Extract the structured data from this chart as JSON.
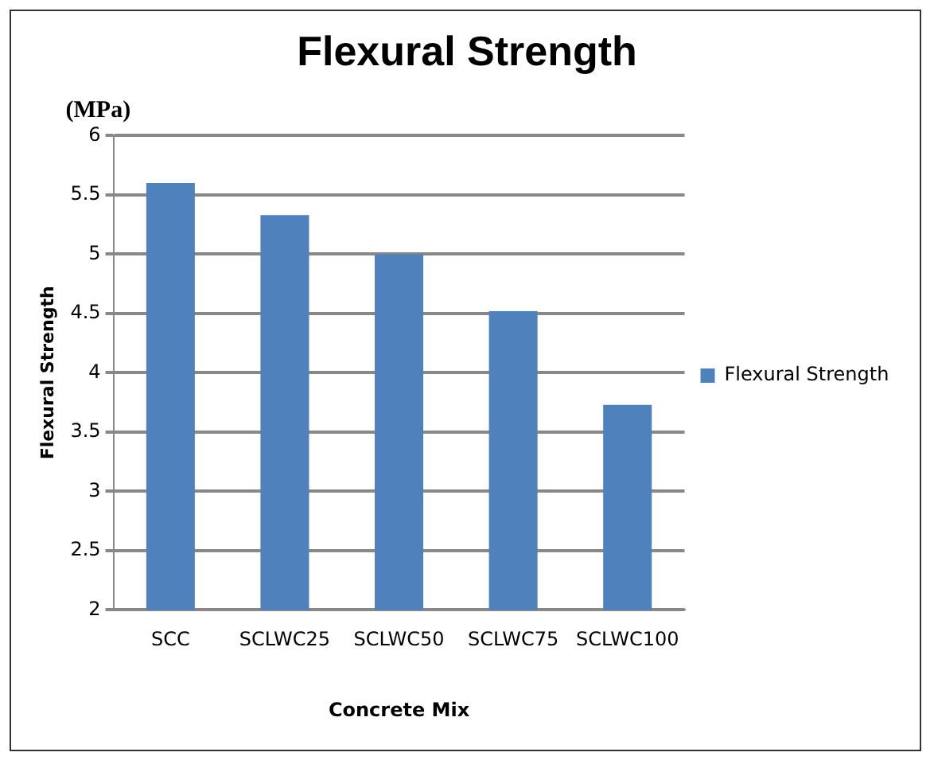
{
  "chart_data": {
    "type": "bar",
    "title": "Flexural Strength",
    "xlabel": "Concrete Mix",
    "ylabel": "Flexural Strength",
    "annotations": [
      "(MPa)"
    ],
    "categories": [
      "SCC",
      "SCLWC25",
      "SCLWC50",
      "SCLWC75",
      "SCLWC100"
    ],
    "series": [
      {
        "name": "Flexural Strength",
        "color": "#4f81bd",
        "values": [
          5.6,
          5.33,
          5.0,
          4.52,
          3.73
        ]
      }
    ],
    "ylim": [
      2,
      6
    ],
    "yticks": [
      2,
      2.5,
      3,
      3.5,
      4,
      4.5,
      5,
      5.5,
      6
    ],
    "grid": "y",
    "legend": "right"
  }
}
